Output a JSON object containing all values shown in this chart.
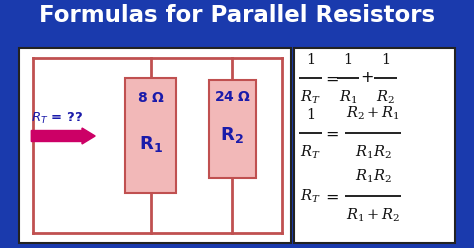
{
  "title": "Formulas for Parallel Resistors",
  "title_color": "#FFFFFF",
  "bg_color": "#1a3aad",
  "left_panel_bg": "#FFFFFF",
  "right_panel_bg": "#FFFFFF",
  "resistor_fill": "#f2b8b8",
  "resistor_edge": "#c05050",
  "wire_color": "#c05050",
  "label_color": "#1a1aaa",
  "arrow_color": "#cc0066",
  "formula_color": "#111111"
}
